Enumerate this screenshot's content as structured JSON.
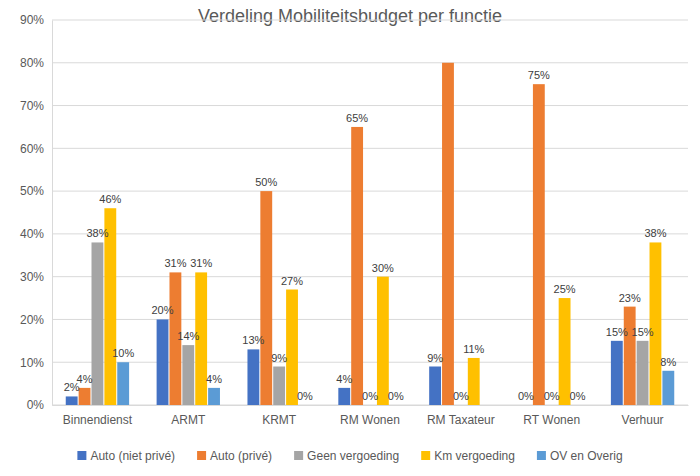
{
  "chart_data": {
    "type": "bar",
    "title": "Verdeling Mobiliteitsbudget per functie",
    "categories": [
      "Binnendienst",
      "ARMT",
      "KRMT",
      "RM Wonen",
      "RM Taxateur",
      "RT Wonen",
      "Verhuur"
    ],
    "series": [
      {
        "name": "Auto (niet privé)",
        "color": "#4472c4",
        "values": [
          2,
          20,
          13,
          4,
          9,
          0,
          15
        ],
        "value_labels": [
          "2%",
          "20%",
          "13%",
          "4%",
          "9%",
          "0%",
          "15%"
        ]
      },
      {
        "name": "Auto (privé)",
        "color": "#ed7d31",
        "values": [
          4,
          31,
          50,
          65,
          80,
          75,
          23
        ],
        "value_labels": [
          "4%",
          "31%",
          "50%",
          "65%",
          null,
          "75%",
          "23%"
        ]
      },
      {
        "name": "Geen vergoeding",
        "color": "#a5a5a5",
        "values": [
          38,
          14,
          9,
          0,
          0,
          0,
          15
        ],
        "value_labels": [
          "38%",
          "14%",
          "9%",
          "0%",
          "0%",
          "0%",
          "15%"
        ]
      },
      {
        "name": "Km vergoeding",
        "color": "#ffc000",
        "values": [
          46,
          31,
          27,
          30,
          11,
          25,
          38
        ],
        "value_labels": [
          "46%",
          "31%",
          "27%",
          "30%",
          "11%",
          "25%",
          "38%"
        ]
      },
      {
        "name": "OV en Overig",
        "color": "#5b9bd5",
        "values": [
          10,
          4,
          0,
          0,
          0,
          0,
          8
        ],
        "value_labels": [
          "10%",
          "4%",
          "0%",
          "0%",
          null,
          "0%",
          "8%"
        ]
      }
    ],
    "ylim": [
      0,
      90
    ],
    "yticks": [
      {
        "value": 0,
        "label": "0%"
      },
      {
        "value": 10,
        "label": "10%"
      },
      {
        "value": 20,
        "label": "20%"
      },
      {
        "value": 30,
        "label": "30%"
      },
      {
        "value": 40,
        "label": "40%"
      },
      {
        "value": 50,
        "label": "50%"
      },
      {
        "value": 60,
        "label": "60%"
      },
      {
        "value": 70,
        "label": "70%"
      },
      {
        "value": 80,
        "label": "80%"
      },
      {
        "value": 90,
        "label": "90%"
      }
    ],
    "grid": true,
    "legend": "bottom",
    "data_labels": true
  }
}
